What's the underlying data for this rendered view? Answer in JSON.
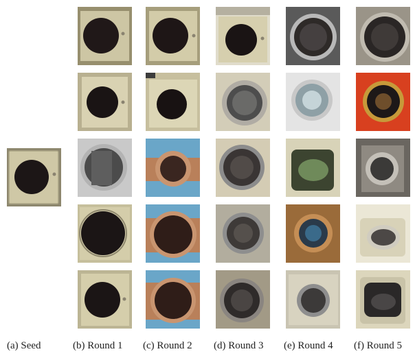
{
  "captions": {
    "a": "(a) Seed",
    "b": "(b) Round 1",
    "c": "(c) Round 2",
    "d": "(d) Round 3",
    "e": "(e) Round 4",
    "f": "(f) Round 5"
  },
  "colors": {
    "cream_panel": "#cfc8a6",
    "cream_panel_dark": "#a9a283",
    "door_dark": "#1c1616",
    "chrome": "#8c8c8c",
    "copper": "#b9805a",
    "blue_wall": "#6aa6c8",
    "red_panel": "#d8401f",
    "bronze": "#9a6b3a"
  }
}
